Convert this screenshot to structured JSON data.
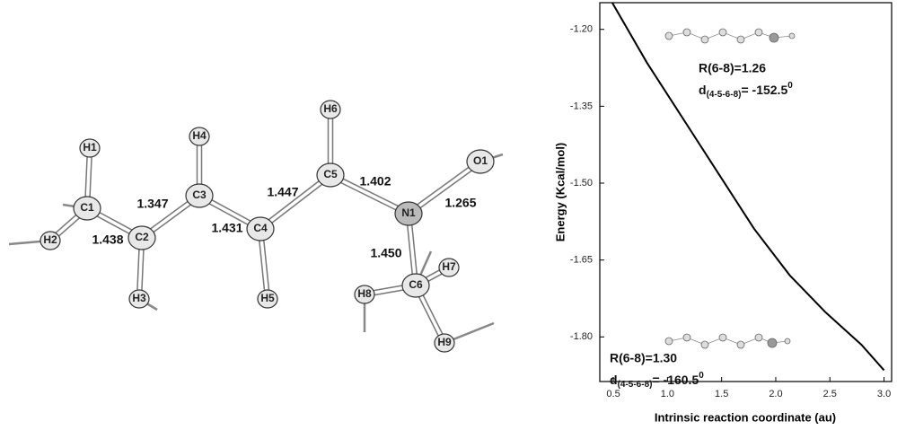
{
  "molecule": {
    "atoms": [
      "H1",
      "C1",
      "H2",
      "C2",
      "H3",
      "C3",
      "H4",
      "C4",
      "H5",
      "C5",
      "H6",
      "N1",
      "O1",
      "C6",
      "H7",
      "H8",
      "H9"
    ],
    "bond_lengths": [
      "1.347",
      "1.438",
      "1.431",
      "1.447",
      "1.402",
      "1.265",
      "1.450"
    ]
  },
  "chart_data": {
    "type": "line",
    "x_label": "Intrinsic reaction coordinate (au)",
    "y_label": "Energy (Kcal/mol)",
    "x": [
      0.49,
      0.81,
      1.14,
      1.47,
      1.8,
      2.13,
      2.46,
      2.79,
      3.0
    ],
    "values": [
      -1.148,
      -1.265,
      -1.373,
      -1.481,
      -1.589,
      -1.68,
      -1.752,
      -1.815,
      -1.865
    ],
    "color": "#000000",
    "xlim": [
      0.375,
      3.07
    ],
    "ylim": [
      -1.887,
      -1.148
    ],
    "xticks": [
      0.5,
      1.0,
      1.5,
      2.0,
      2.5,
      3.0
    ],
    "yticks": [
      {
        "value": -1.2,
        "label": "-1.20"
      },
      {
        "value": -1.35,
        "label": "-1.35"
      },
      {
        "value": -1.5,
        "label": "-1.50"
      },
      {
        "value": -1.65,
        "label": "-1.65"
      },
      {
        "value": -1.8,
        "label": "-1.80"
      }
    ],
    "annotations": [
      {
        "r": "R(6-8)=1.26",
        "d": "d",
        "d_sub": "(4-5-6-8)",
        "d_eq": "= -152.5",
        "d_sup": "0"
      },
      {
        "r": "R(6-8)=1.30",
        "d": "d",
        "d_sub": "(4-5-6-8)",
        "d_eq": "= -160.5",
        "d_sup": "0"
      }
    ]
  }
}
